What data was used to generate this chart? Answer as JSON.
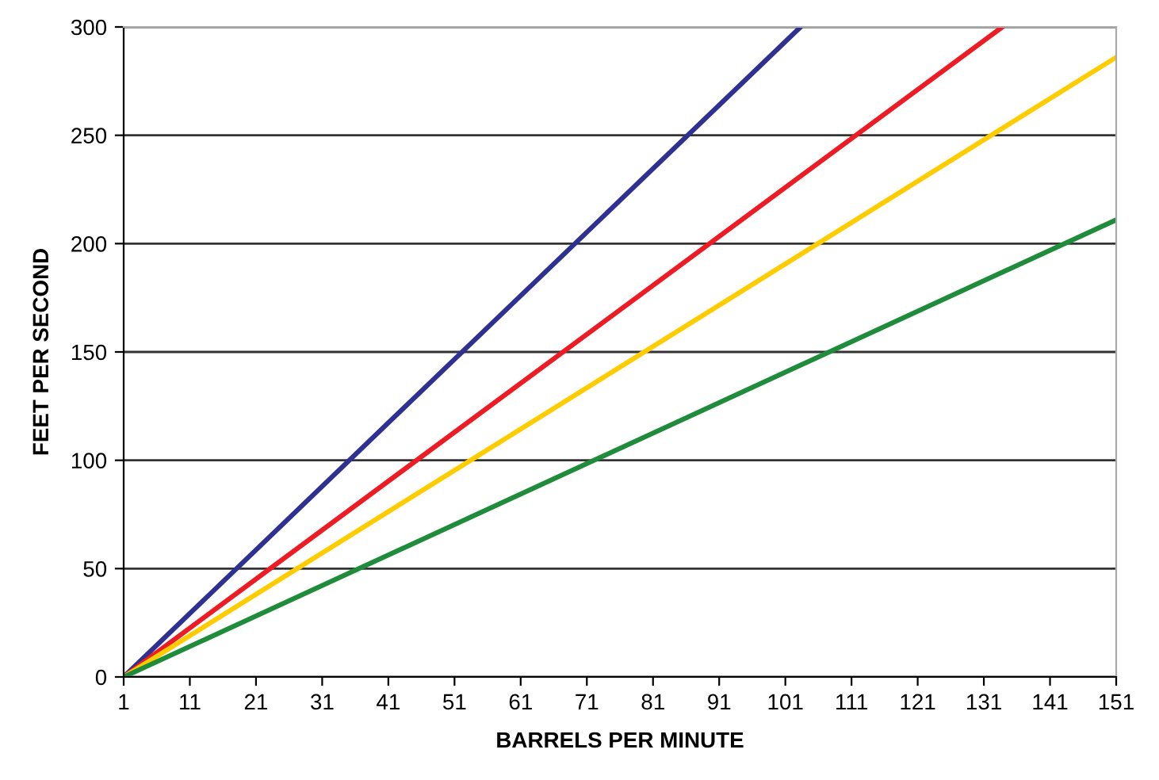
{
  "chart_data": {
    "type": "line",
    "xlabel": "BARRELS PER MINUTE",
    "ylabel": "FEET PER SECOND",
    "xlim": [
      1,
      151
    ],
    "xticks": [
      1,
      11,
      21,
      31,
      41,
      51,
      61,
      71,
      81,
      91,
      101,
      111,
      121,
      131,
      141,
      151
    ],
    "ylim": [
      0,
      300
    ],
    "yticks": [
      0,
      50,
      100,
      150,
      200,
      250,
      300
    ],
    "grid": "y",
    "legend": false,
    "marker": "none",
    "line_style": "solid",
    "series": [
      {
        "color": "#2e3192",
        "x": [
          1,
          103.3
        ],
        "values": [
          0,
          300
        ]
      },
      {
        "color": "#ed1c24",
        "x": [
          1,
          133.8
        ],
        "values": [
          0,
          300
        ]
      },
      {
        "color": "#ffcc00",
        "x": [
          1,
          151
        ],
        "values": [
          0,
          286
        ]
      },
      {
        "color": "#1e8c3a",
        "x": [
          1,
          151
        ],
        "values": [
          0,
          211
        ]
      }
    ]
  }
}
